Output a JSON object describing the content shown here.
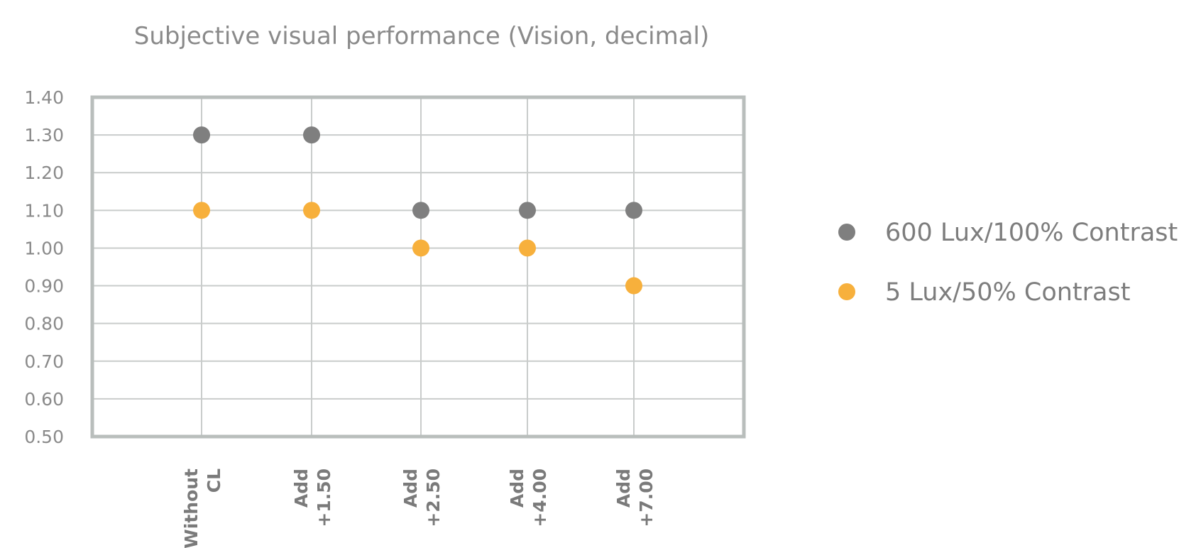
{
  "chart_data": {
    "type": "scatter",
    "title": "Subjective visual performance (Vision, decimal)",
    "categories": [
      [
        "Without",
        "CL"
      ],
      [
        "Add",
        "+1.50"
      ],
      [
        "Add",
        "+2.50"
      ],
      [
        "Add",
        "+4.00"
      ],
      [
        "Add",
        "+7.00"
      ]
    ],
    "series": [
      {
        "name": "600 Lux/100% Contrast",
        "color": "#7f7f7f",
        "values": [
          1.3,
          1.3,
          1.1,
          1.1,
          1.1
        ]
      },
      {
        "name": "5 Lux/50% Contrast",
        "color": "#f7b03c",
        "values": [
          1.1,
          1.1,
          1.0,
          1.0,
          0.9
        ]
      }
    ],
    "ylim": [
      0.5,
      1.4
    ],
    "yticks": [
      "0.50",
      "0.60",
      "0.70",
      "0.80",
      "0.90",
      "1.00",
      "1.10",
      "1.20",
      "1.30",
      "1.40"
    ],
    "xlabel": "",
    "ylabel": "",
    "grid": true,
    "legend": "right"
  }
}
